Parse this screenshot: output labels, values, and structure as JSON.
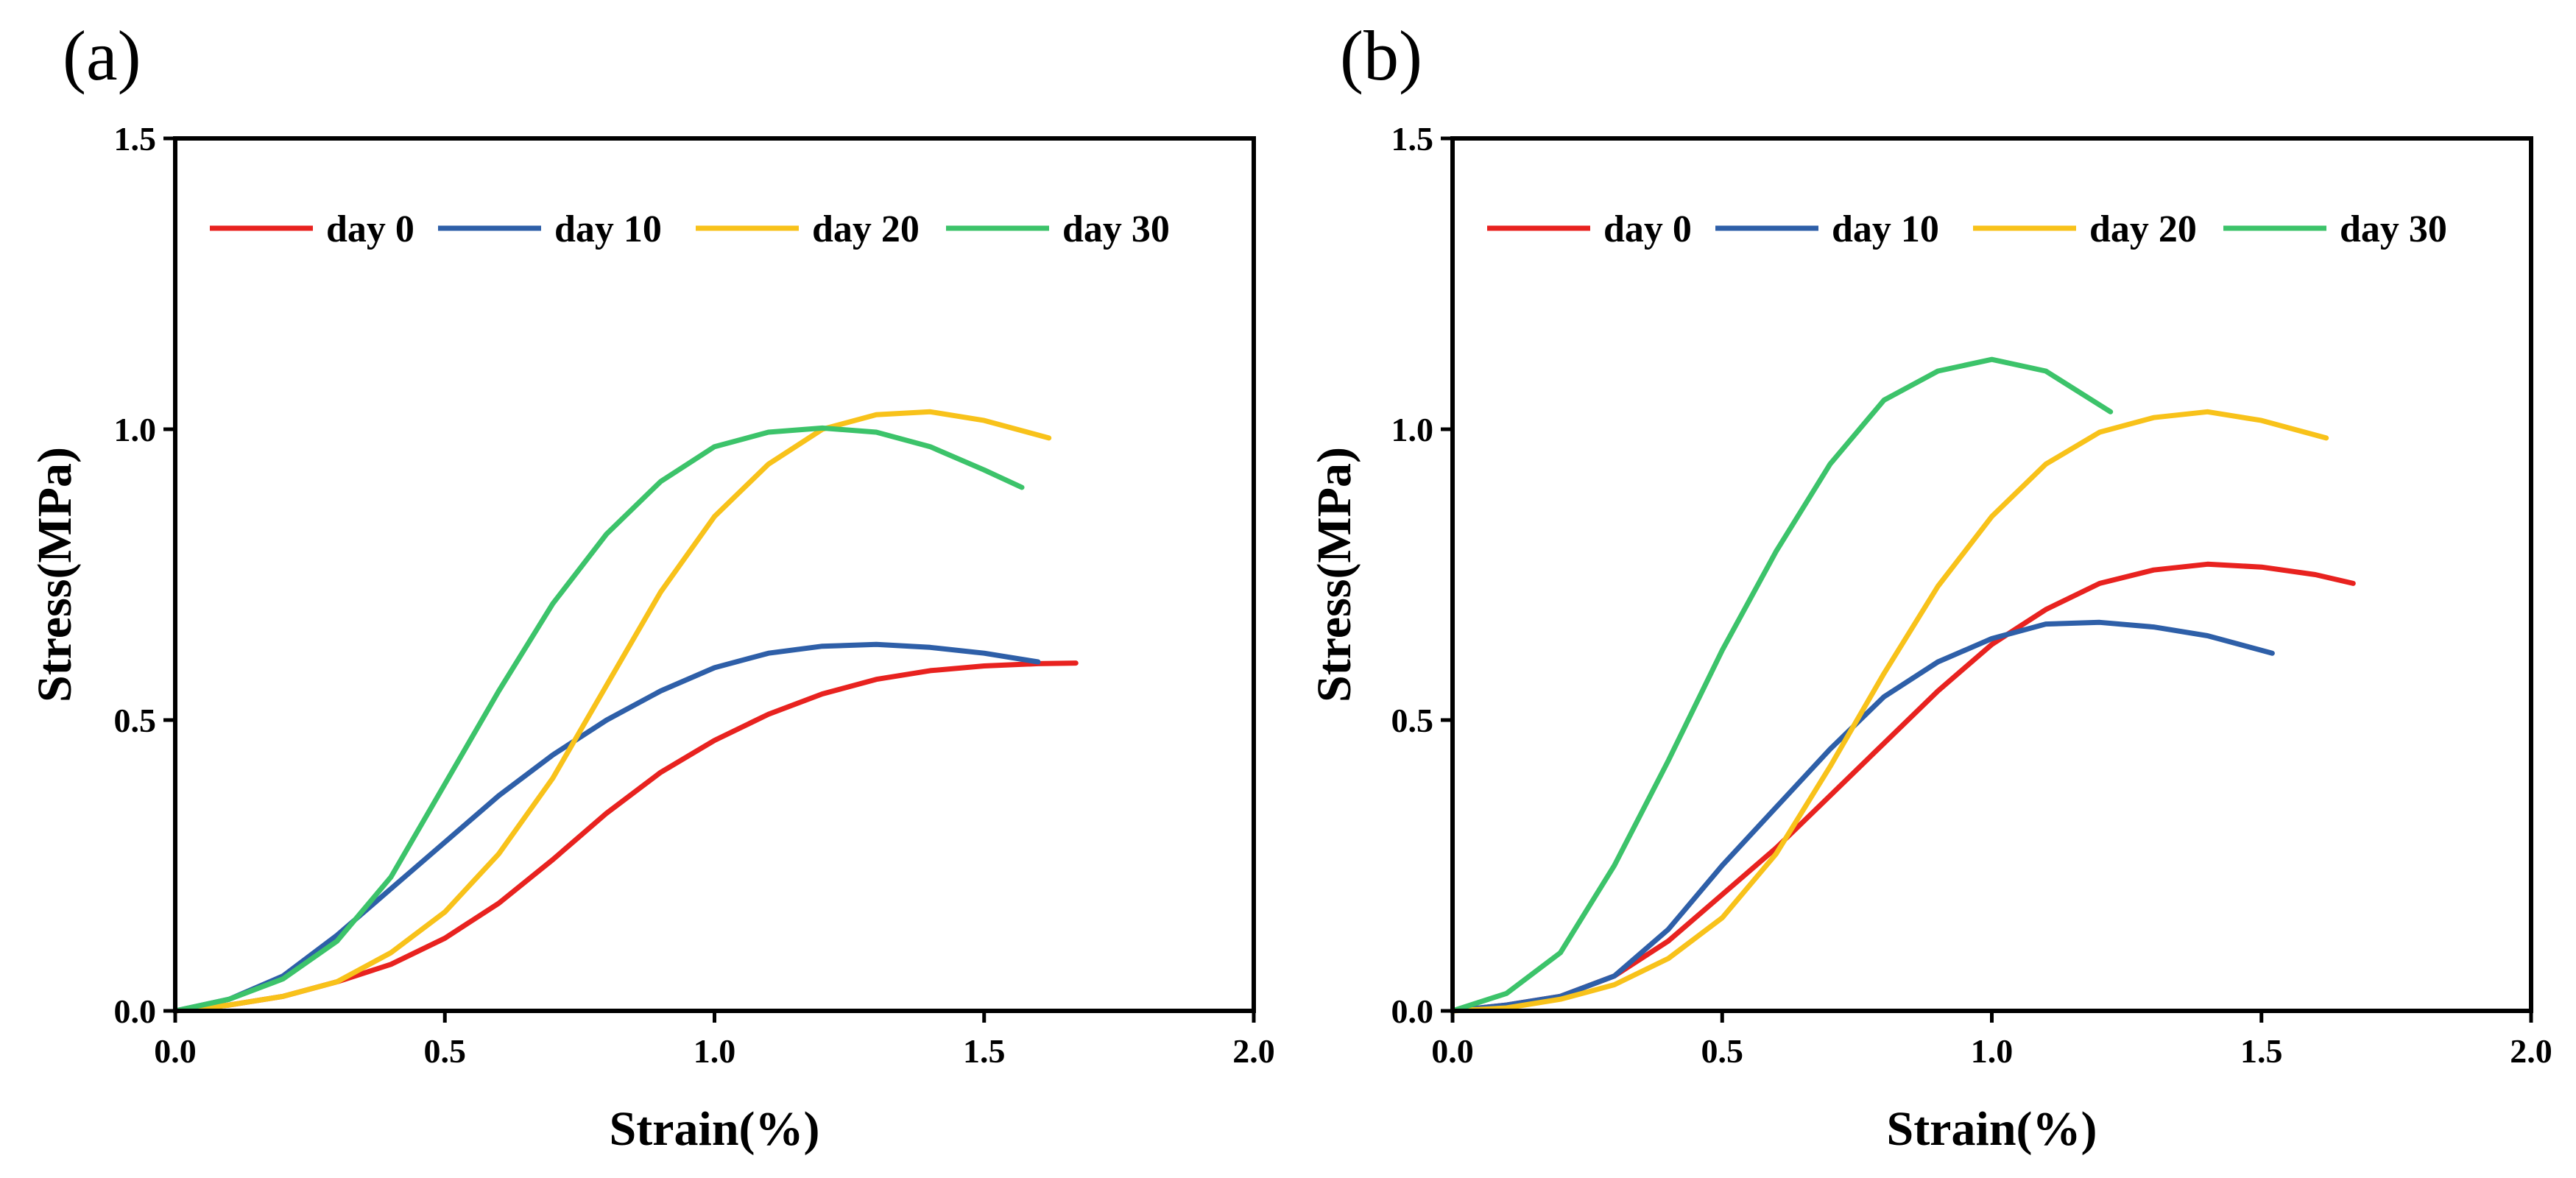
{
  "chart_data": [
    {
      "type": "line",
      "panel_label": "(a)",
      "xlabel": "Strain(%)",
      "ylabel": "Stress(MPa)",
      "xlim": [
        0,
        2.0
      ],
      "ylim": [
        0,
        1.5
      ],
      "xticks": [
        "0.0",
        "0.5",
        "1.0",
        "1.5",
        "2.0"
      ],
      "yticks": [
        "0.0",
        "0.5",
        "1.0",
        "1.5"
      ],
      "legend_position": "top",
      "series": [
        {
          "name": "day 0",
          "color": "#e8221f",
          "x": [
            0,
            0.1,
            0.2,
            0.3,
            0.4,
            0.5,
            0.6,
            0.7,
            0.8,
            0.9,
            1.0,
            1.1,
            1.2,
            1.3,
            1.4,
            1.5,
            1.6,
            1.67
          ],
          "y": [
            0,
            0.01,
            0.025,
            0.05,
            0.08,
            0.125,
            0.185,
            0.26,
            0.34,
            0.41,
            0.465,
            0.51,
            0.545,
            0.57,
            0.585,
            0.593,
            0.597,
            0.598
          ]
        },
        {
          "name": "day 10",
          "color": "#2e5fa8",
          "x": [
            0,
            0.1,
            0.2,
            0.3,
            0.4,
            0.5,
            0.6,
            0.7,
            0.8,
            0.9,
            1.0,
            1.1,
            1.2,
            1.3,
            1.4,
            1.5,
            1.6
          ],
          "y": [
            0,
            0.02,
            0.06,
            0.13,
            0.21,
            0.29,
            0.37,
            0.44,
            0.5,
            0.55,
            0.59,
            0.615,
            0.627,
            0.63,
            0.625,
            0.615,
            0.6
          ]
        },
        {
          "name": "day 20",
          "color": "#f8c21a",
          "x": [
            0,
            0.1,
            0.2,
            0.3,
            0.4,
            0.5,
            0.6,
            0.7,
            0.8,
            0.9,
            1.0,
            1.1,
            1.2,
            1.3,
            1.4,
            1.5,
            1.62
          ],
          "y": [
            0,
            0.01,
            0.025,
            0.05,
            0.1,
            0.17,
            0.27,
            0.4,
            0.56,
            0.72,
            0.85,
            0.94,
            1.0,
            1.025,
            1.03,
            1.015,
            0.985
          ]
        },
        {
          "name": "day 30",
          "color": "#3cc36a",
          "x": [
            0,
            0.1,
            0.2,
            0.3,
            0.4,
            0.5,
            0.6,
            0.7,
            0.8,
            0.9,
            1.0,
            1.1,
            1.2,
            1.3,
            1.4,
            1.5,
            1.57
          ],
          "y": [
            0,
            0.02,
            0.055,
            0.12,
            0.23,
            0.39,
            0.55,
            0.7,
            0.82,
            0.91,
            0.97,
            0.995,
            1.002,
            0.995,
            0.97,
            0.93,
            0.9
          ]
        }
      ]
    },
    {
      "type": "line",
      "panel_label": "(b)",
      "xlabel": "Strain(%)",
      "ylabel": "Stress(MPa)",
      "xlim": [
        0,
        2.0
      ],
      "ylim": [
        0,
        1.5
      ],
      "xticks": [
        "0.0",
        "0.5",
        "1.0",
        "1.5",
        "2.0"
      ],
      "yticks": [
        "0.0",
        "0.5",
        "1.0",
        "1.5"
      ],
      "legend_position": "top",
      "series": [
        {
          "name": "day 0",
          "color": "#e8221f",
          "x": [
            0,
            0.1,
            0.2,
            0.3,
            0.4,
            0.5,
            0.6,
            0.7,
            0.8,
            0.9,
            1.0,
            1.1,
            1.2,
            1.3,
            1.4,
            1.5,
            1.6,
            1.67
          ],
          "y": [
            0,
            0.01,
            0.025,
            0.06,
            0.12,
            0.2,
            0.28,
            0.37,
            0.46,
            0.55,
            0.63,
            0.69,
            0.735,
            0.758,
            0.768,
            0.763,
            0.75,
            0.735
          ]
        },
        {
          "name": "day 10",
          "color": "#2e5fa8",
          "x": [
            0,
            0.1,
            0.2,
            0.3,
            0.4,
            0.5,
            0.6,
            0.7,
            0.8,
            0.9,
            1.0,
            1.1,
            1.2,
            1.3,
            1.4,
            1.52
          ],
          "y": [
            0,
            0.01,
            0.025,
            0.06,
            0.14,
            0.25,
            0.35,
            0.45,
            0.54,
            0.6,
            0.64,
            0.665,
            0.668,
            0.66,
            0.645,
            0.615
          ]
        },
        {
          "name": "day 20",
          "color": "#f8c21a",
          "x": [
            0,
            0.1,
            0.2,
            0.3,
            0.4,
            0.5,
            0.6,
            0.7,
            0.8,
            0.9,
            1.0,
            1.1,
            1.2,
            1.3,
            1.4,
            1.5,
            1.62
          ],
          "y": [
            0,
            0.005,
            0.02,
            0.045,
            0.09,
            0.16,
            0.27,
            0.42,
            0.58,
            0.73,
            0.85,
            0.94,
            0.995,
            1.02,
            1.03,
            1.015,
            0.985
          ]
        },
        {
          "name": "day 30",
          "color": "#3cc36a",
          "x": [
            0,
            0.1,
            0.2,
            0.3,
            0.4,
            0.5,
            0.6,
            0.7,
            0.8,
            0.9,
            1.0,
            1.1,
            1.22
          ],
          "y": [
            0,
            0.03,
            0.1,
            0.25,
            0.43,
            0.62,
            0.79,
            0.94,
            1.05,
            1.1,
            1.12,
            1.1,
            1.03
          ]
        }
      ]
    }
  ]
}
